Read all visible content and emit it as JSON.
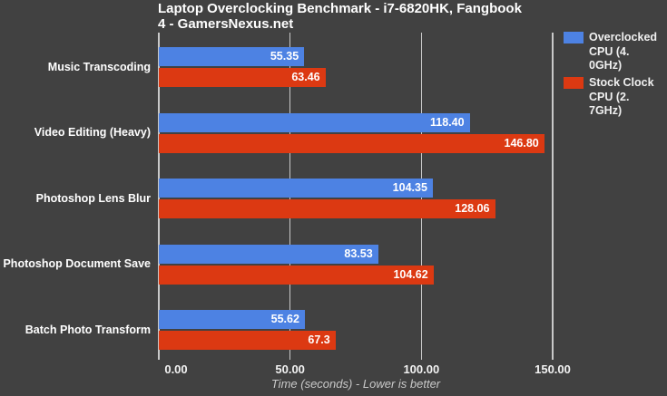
{
  "title_lines": [
    "Laptop Overclocking Benchmark - i7-6820HK, Fangbook",
    "4 - GamersNexus.net"
  ],
  "chart_data": {
    "type": "bar",
    "orientation": "horizontal",
    "title": "Laptop Overclocking Benchmark - i7-6820HK, Fangbook 4 - GamersNexus.net",
    "categories": [
      "Music Transcoding",
      "Video Editing (Heavy)",
      "Photoshop Lens Blur",
      "Photoshop Document Save",
      "Batch Photo Transform"
    ],
    "series": [
      {
        "name": "Overclocked CPU (4.0GHz)",
        "legend_lines": [
          "Overclocked",
          "CPU (4.",
          "0GHz)"
        ],
        "color": "#4d82e3",
        "values": [
          55.35,
          118.4,
          104.35,
          83.53,
          55.62
        ],
        "labels": [
          "55.35",
          "118.40",
          "104.35",
          "83.53",
          "55.62"
        ]
      },
      {
        "name": "Stock Clock CPU (2.7GHz)",
        "legend_lines": [
          "Stock Clock",
          "CPU (2.",
          "7GHz)"
        ],
        "color": "#dc3912",
        "values": [
          63.46,
          146.8,
          128.06,
          104.62,
          67.3
        ],
        "labels": [
          "63.46",
          "146.80",
          "128.06",
          "104.62",
          "67.3"
        ]
      }
    ],
    "xlabel": "Time (seconds) - Lower is better",
    "x_ticks": [
      "0.00",
      "50.00",
      "100.00",
      "150.00"
    ],
    "x_tick_values": [
      0,
      50,
      100,
      150
    ],
    "xlim": [
      0,
      150
    ],
    "grid": true,
    "legend_position": "right",
    "colors": {
      "background": "#414141",
      "gridline": "#c9c9c9",
      "text": "#ffffff",
      "axis_title": "#c9c9c9"
    }
  }
}
